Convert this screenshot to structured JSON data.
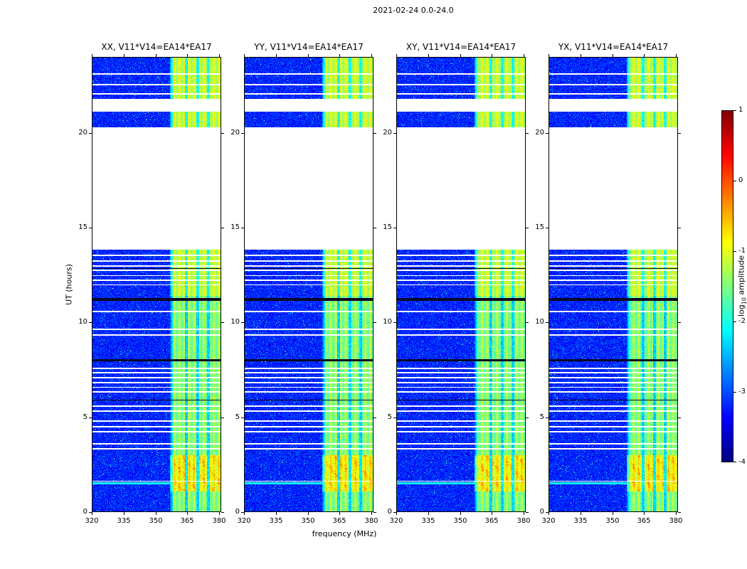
{
  "chart_data": {
    "type": "heatmap",
    "title": "2021-02-24 0.0-24.0",
    "xlabel": "frequency (MHz)",
    "ylabel": "UT (hours)",
    "x_range_mhz": [
      320,
      381
    ],
    "y_range_hours": [
      0,
      24
    ],
    "x_ticks_mhz": [
      320,
      335,
      350,
      365,
      380
    ],
    "y_ticks_hours": [
      0,
      5,
      10,
      15,
      20
    ],
    "colormap": "jet",
    "colorbar": {
      "label_prefix": "log",
      "label_sub": "10",
      "label_suffix": " amplitude",
      "min": -4,
      "max": 1,
      "ticks": [
        1,
        0,
        -1,
        -2,
        -3,
        -4
      ]
    },
    "panels": [
      {
        "label": "XX, V11*V14=EA14*EA17",
        "seed": 11
      },
      {
        "label": "YY, V11*V14=EA14*EA17",
        "seed": 22
      },
      {
        "label": "XY, V11*V14=EA14*EA17",
        "seed": 33
      },
      {
        "label": "YX, V11*V14=EA14*EA17",
        "seed": 44
      }
    ],
    "features": {
      "noise_floor_log10": -3.35,
      "coverage_hours": [
        [
          0.0,
          13.85
        ],
        [
          20.3,
          23.95
        ]
      ],
      "missing_rows_hours": [
        [
          1.62,
          1.66
        ],
        [
          3.3,
          3.37
        ],
        [
          3.55,
          3.62
        ],
        [
          4.2,
          4.27
        ],
        [
          4.45,
          4.52
        ],
        [
          4.75,
          4.82
        ],
        [
          5.3,
          5.37
        ],
        [
          5.55,
          5.62
        ],
        [
          6.3,
          6.37
        ],
        [
          6.55,
          6.6
        ],
        [
          6.8,
          6.87
        ],
        [
          7.05,
          7.12
        ],
        [
          7.3,
          7.37
        ],
        [
          7.55,
          7.62
        ],
        [
          9.3,
          9.37
        ],
        [
          9.6,
          9.67
        ],
        [
          10.55,
          10.62
        ],
        [
          11.95,
          12.0
        ],
        [
          12.2,
          12.27
        ],
        [
          12.45,
          12.5
        ],
        [
          12.7,
          12.77
        ],
        [
          12.95,
          13.0
        ],
        [
          13.2,
          13.27
        ],
        [
          13.5,
          13.57
        ],
        [
          21.1,
          21.8
        ],
        [
          22.0,
          22.07
        ],
        [
          22.5,
          22.57
        ],
        [
          23.05,
          23.12
        ]
      ],
      "dark_rows_hours": [
        [
          7.95,
          8.08
        ],
        [
          11.15,
          11.28
        ],
        [
          12.83,
          12.88
        ],
        [
          5.88,
          5.93
        ]
      ],
      "rfi_band_mhz": [
        357,
        381
      ],
      "rfi_gap_columns_mhz": [
        [
          363.8,
          365.2
        ],
        [
          369.3,
          370.7
        ],
        [
          374.3,
          375.7
        ]
      ],
      "bright_rfi_hours": [
        1.1,
        3.0
      ],
      "enhanced_rfi_hours": [
        [
          11.4,
          13.85
        ],
        [
          20.3,
          23.95
        ]
      ],
      "bright_row_hours": [
        1.47,
        1.56
      ]
    }
  }
}
